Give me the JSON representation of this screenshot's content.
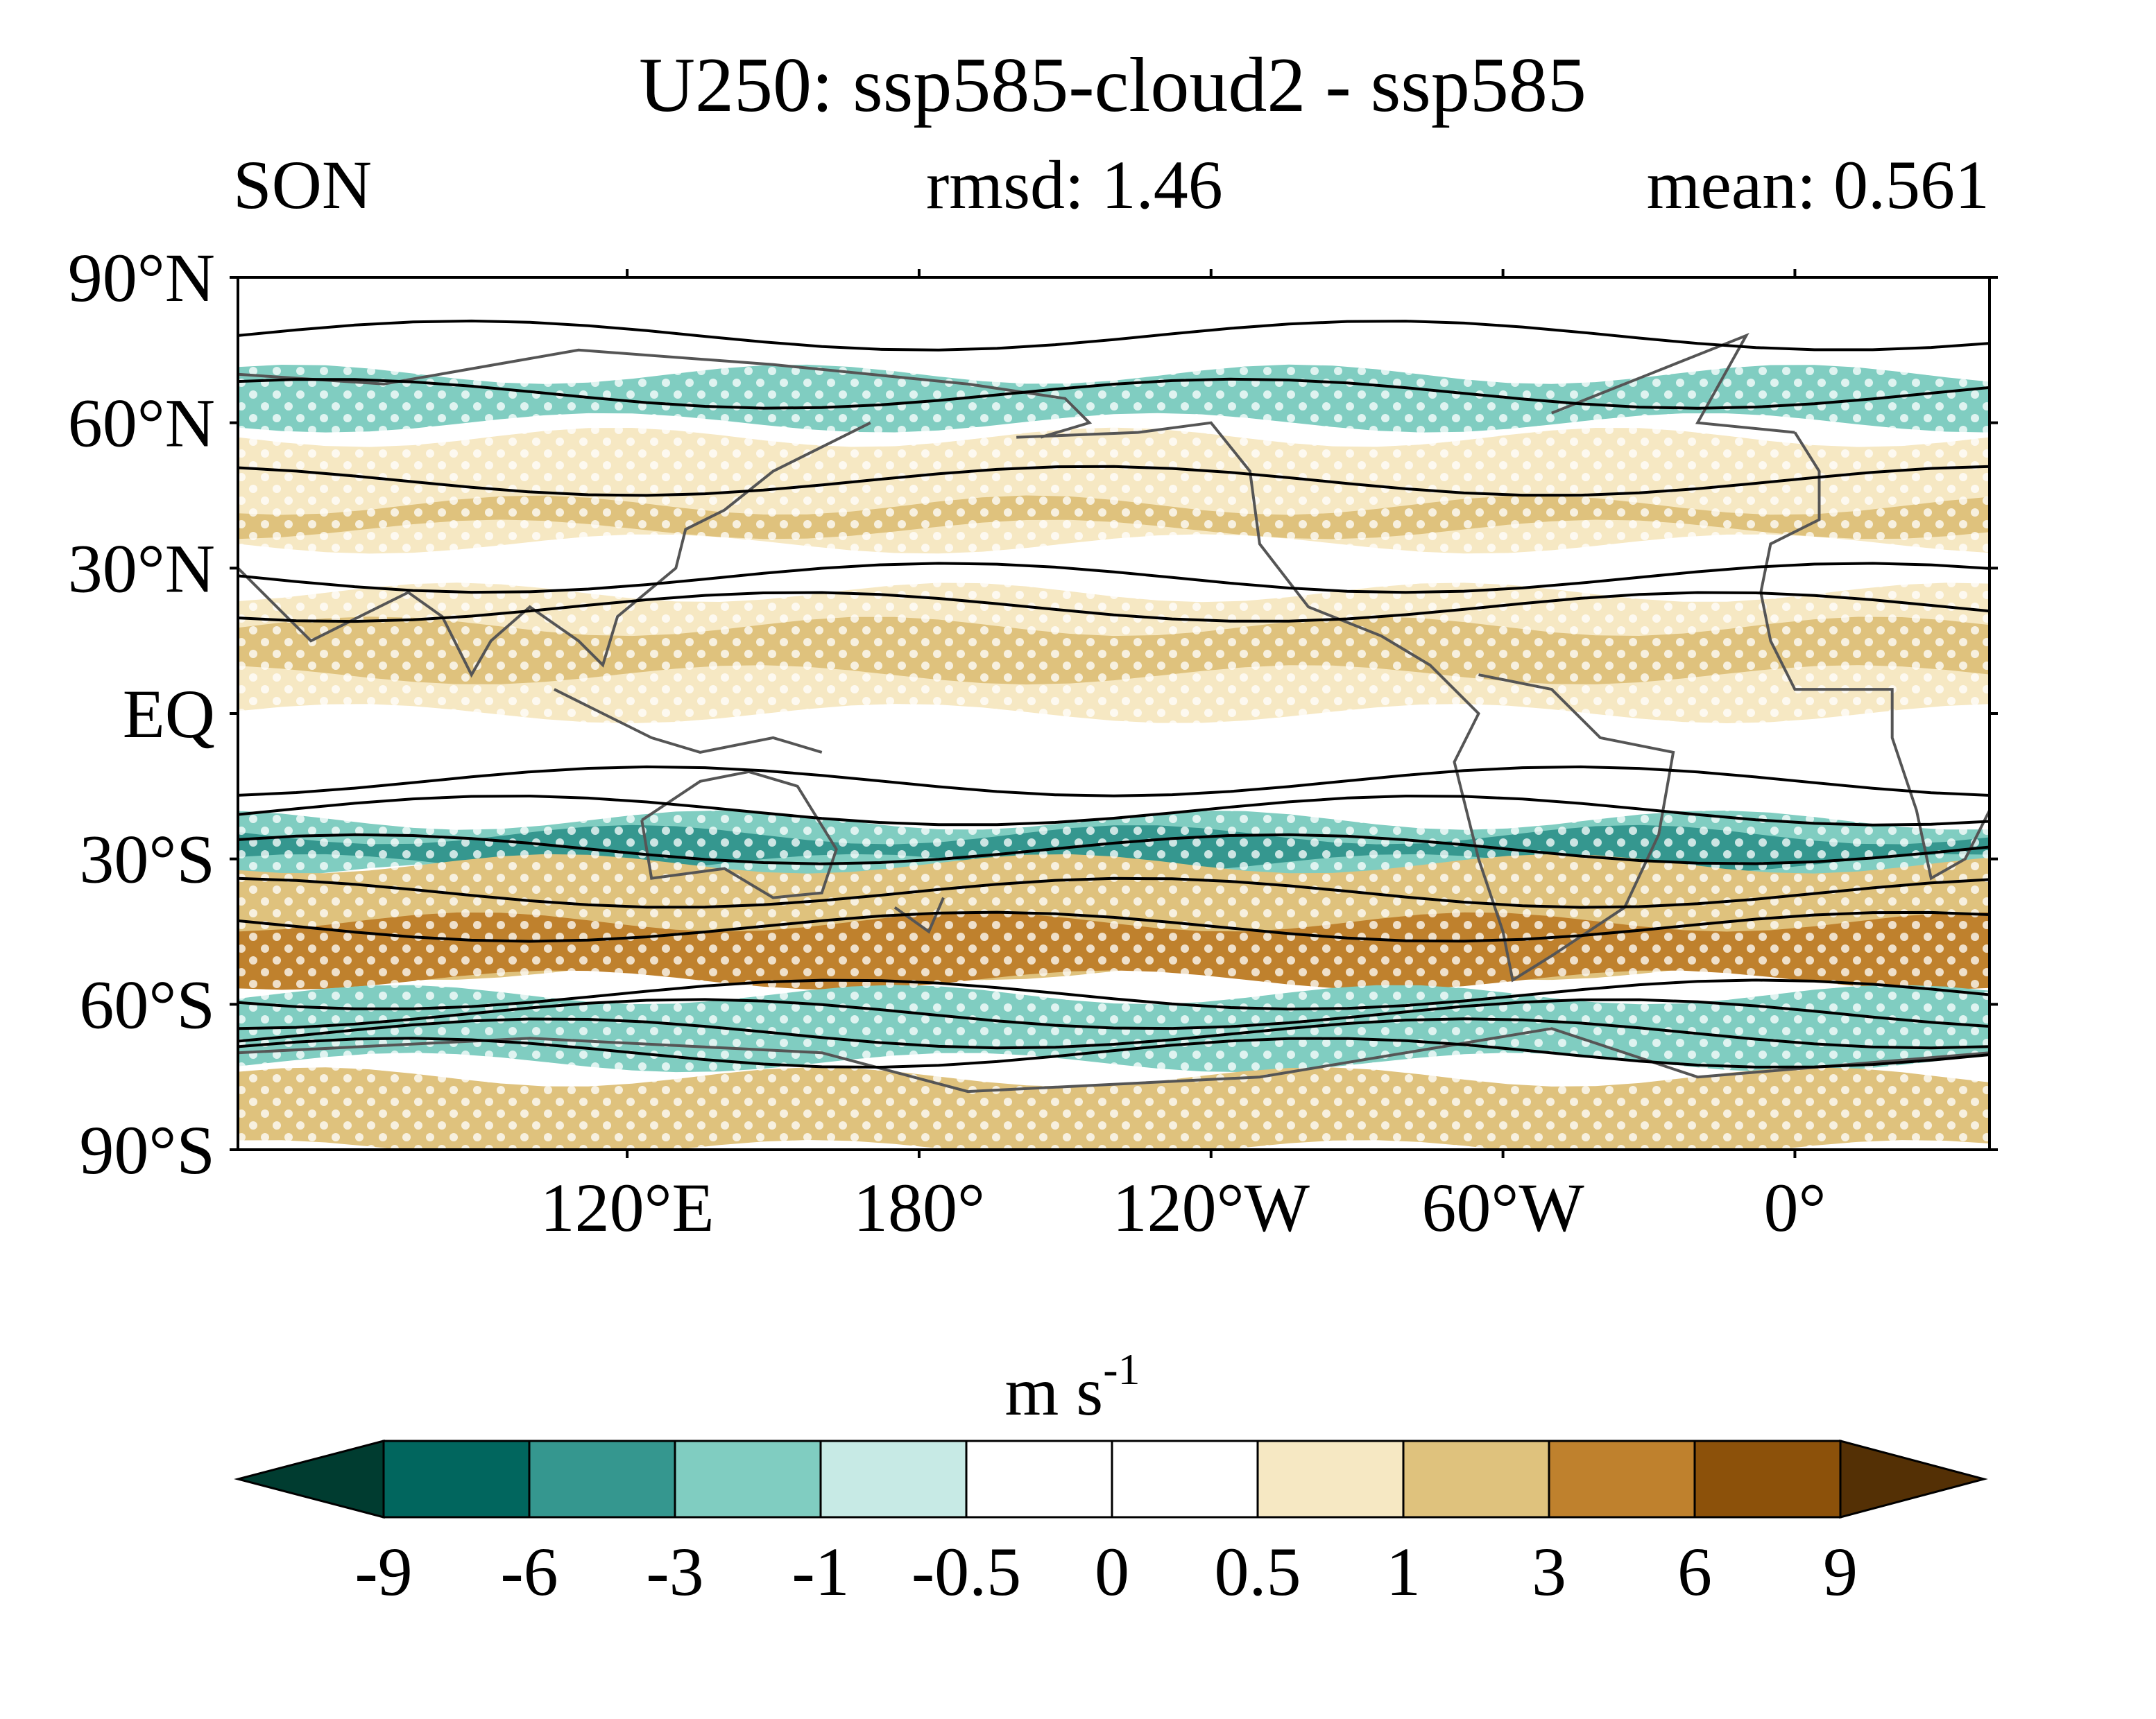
{
  "title": "U250: ssp585-cloud2 - ssp585",
  "left_label": "SON",
  "center_label": "rmsd: 1.46",
  "right_label": "mean: 0.561",
  "units": "m s",
  "units_superscript": "-1",
  "map": {
    "projection": "cylindrical-equidistant",
    "lon_range": [
      30,
      390
    ],
    "lat_range": [
      -90,
      90
    ],
    "lat_ticks": [
      {
        "value": 90,
        "label": "90°N"
      },
      {
        "value": 60,
        "label": "60°N"
      },
      {
        "value": 30,
        "label": "30°N"
      },
      {
        "value": 0,
        "label": "EQ"
      },
      {
        "value": -30,
        "label": "30°S"
      },
      {
        "value": -60,
        "label": "60°S"
      },
      {
        "value": -90,
        "label": "90°S"
      }
    ],
    "lon_ticks": [
      {
        "value": 110,
        "label": "120°E"
      },
      {
        "value": 170,
        "label": "180°"
      },
      {
        "value": 230,
        "label": "120°W"
      },
      {
        "value": 290,
        "label": "60°W"
      },
      {
        "value": 350,
        "label": "0°"
      }
    ],
    "shading_bands": [
      {
        "level": "pos1",
        "lat": [
          57,
          35
        ]
      },
      {
        "level": "pos2",
        "lat": [
          38,
          43
        ]
      },
      {
        "level": "pos1",
        "lat": [
          25,
          0
        ]
      },
      {
        "level": "pos2",
        "lat": [
          18,
          8
        ]
      },
      {
        "level": "neg2",
        "lat": [
          70,
          60
        ]
      },
      {
        "level": "neg2",
        "lat": [
          -22,
          -33
        ]
      },
      {
        "level": "neg3",
        "lat": [
          -25,
          -31
        ]
      },
      {
        "level": "pos2",
        "lat": [
          -31,
          -53
        ]
      },
      {
        "level": "pos3",
        "lat": [
          -43,
          -55
        ]
      },
      {
        "level": "neg2",
        "lat": [
          -58,
          -72
        ]
      },
      {
        "level": "pos2",
        "lat": [
          -75,
          -90
        ]
      }
    ],
    "significance_stippling": true,
    "contours": "climatological U250 (black lines)"
  },
  "colorbar": {
    "labels": [
      "-9",
      "-6",
      "-3",
      "-1",
      "-0.5",
      "0",
      "0.5",
      "1",
      "3",
      "6",
      "9"
    ],
    "colors": [
      "#003c30",
      "#01665e",
      "#35978f",
      "#80cdc1",
      "#c7eae5",
      "#ffffff",
      "#ffffff",
      "#f6e8c3",
      "#dfc27d",
      "#bf812d",
      "#8c510a",
      "#543005"
    ]
  },
  "colors": {
    "neg1": "#c7eae5",
    "neg2": "#80cdc1",
    "neg3": "#35978f",
    "pos1": "#f6e8c3",
    "pos2": "#dfc27d",
    "pos3": "#bf812d",
    "contour": "#000000",
    "coast": "#555555"
  }
}
